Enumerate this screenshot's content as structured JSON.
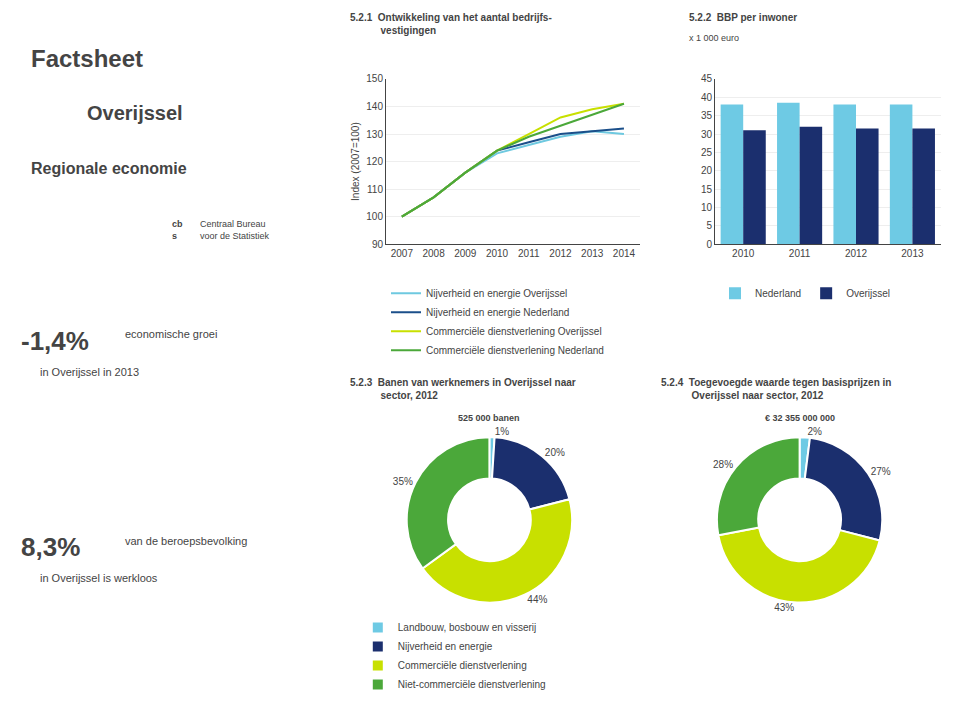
{
  "annotations": [
    "Factsheet",
    "Overijssel",
    "Regionale economie",
    "cb\ns",
    "Centraal Bureau\nvoor de Statistiek",
    "-1,4%",
    "economische groei",
    "in Overijssel in 2013",
    "8,3%",
    "van de beroepsbevolking",
    "in Overijssel is werkloos"
  ],
  "chart_data": [
    {
      "type": "line",
      "title": "5.2.1  Ontwikkeling van het aantal bedrijfs-\n           vestigingen",
      "ylabel": "Index (2007=100)",
      "x": [
        2007,
        2008,
        2009,
        2010,
        2011,
        2012,
        2013,
        2014
      ],
      "series": [
        {
          "name": "Nijverheid en energie Overijssel",
          "color": "#6EC9E0",
          "values": [
            100,
            107,
            116,
            123,
            126,
            129,
            131,
            130
          ]
        },
        {
          "name": "Nijverheid en energie Nederland",
          "color": "#1B4F8A",
          "values": [
            100,
            107,
            116,
            124,
            127,
            130,
            131,
            132
          ]
        },
        {
          "name": "Commerciële dienstverlening Overijssel",
          "color": "#C8E000",
          "values": [
            100,
            107,
            116,
            124,
            130,
            136,
            139,
            141
          ]
        },
        {
          "name": "Commerciële dienstverlening Nederland",
          "color": "#4BA83A",
          "values": [
            100,
            107,
            116,
            124,
            129,
            133,
            137,
            141
          ]
        }
      ],
      "xlim": [
        2006.5,
        2014.5
      ],
      "xticks": [
        2007,
        2008,
        2009,
        2010,
        2011,
        2012,
        2013,
        2014
      ],
      "ylim": [
        90,
        150
      ],
      "yticks": [
        90,
        100,
        110,
        120,
        130,
        140,
        150
      ],
      "grid": true,
      "legend": "bottom"
    },
    {
      "type": "bar",
      "title": "5.2.2  BBP per inwoner",
      "subtitle": "x 1 000 euro",
      "categories": [
        "2010",
        "2011",
        "2012",
        "2013"
      ],
      "series": [
        {
          "name": "Nederland",
          "color": "#6ECAE4",
          "values": [
            38,
            38.5,
            38,
            38
          ]
        },
        {
          "name": "Overijssel",
          "color": "#1B2F6E",
          "values": [
            31,
            32,
            31.5,
            31.5
          ]
        }
      ],
      "ylim": [
        0,
        45
      ],
      "yticks": [
        0,
        5,
        10,
        15,
        20,
        25,
        30,
        35,
        40,
        45
      ],
      "grid": true,
      "legend": "bottom"
    },
    {
      "type": "donut",
      "title": "5.2.3  Banen van werknemers in Overijssel naar\n           sector, 2012",
      "subtitle": "525 000 banen",
      "categories": [
        "Landbouw, bosbouw en visserij",
        "Nijverheid en energie",
        "Commerciële dienstverlening",
        "Niet-commerciële dienstverlening"
      ],
      "values": [
        1,
        20,
        44,
        35
      ],
      "value_labels": [
        "1%",
        "20%",
        "44%",
        "35%"
      ],
      "colors": [
        "#6ECAE4",
        "#1B2F6E",
        "#C8E000",
        "#4BA83A"
      ],
      "data_labels": true,
      "legend": "bottom"
    },
    {
      "type": "donut",
      "title": "5.2.4  Toegevoegde waarde tegen basisprijzen in\n           Overijssel naar sector, 2012",
      "subtitle": "€ 32 355 000 000",
      "categories": [
        "Landbouw, bosbouw en visserij",
        "Nijverheid en energie",
        "Commerciële dienstverlening",
        "Niet-commerciële dienstverlening"
      ],
      "values": [
        2,
        27,
        43,
        28
      ],
      "value_labels": [
        "2%",
        "27%",
        "43%",
        "28%"
      ],
      "colors": [
        "#6ECAE4",
        "#1B2F6E",
        "#C8E000",
        "#4BA83A"
      ],
      "data_labels": true,
      "legend": "bottom"
    }
  ]
}
